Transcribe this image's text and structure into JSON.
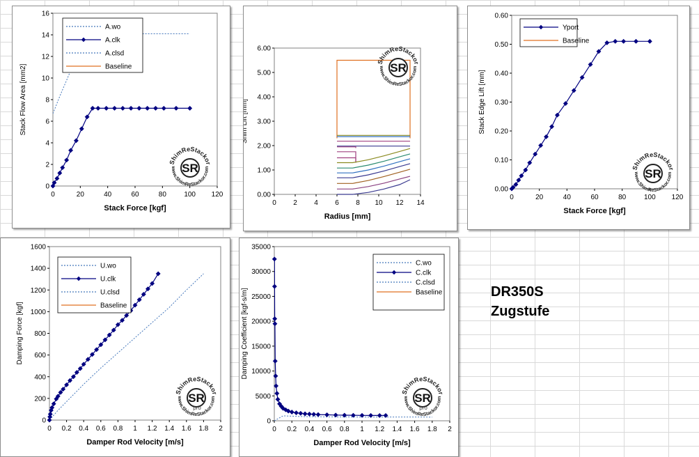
{
  "colors": {
    "series": "#000080",
    "dashed": "#4477bb",
    "baseline": "#e07020",
    "gridline": "#d9d9d9",
    "axis": "#808080"
  },
  "watermark": {
    "brand": "ShimReStackor",
    "url": "www.ShimReStackor.com",
    "logo": "SR",
    "sub": "pro"
  },
  "side_label": {
    "line1": "DR350S",
    "line2": "Zugstufe"
  },
  "chart_data": [
    {
      "id": "flow-area",
      "type": "line",
      "xlabel": "Stack Force [kgf]",
      "ylabel": "Stack Flow Area [mm2]",
      "xlim": [
        0,
        120
      ],
      "ylim": [
        0,
        16
      ],
      "xticks": [
        0,
        20,
        40,
        60,
        80,
        100,
        120
      ],
      "yticks": [
        0,
        2,
        4,
        6,
        8,
        10,
        12,
        14,
        16
      ],
      "ydec": 0,
      "legend": [
        "A.wo",
        "A.clk",
        "A.clsd",
        "Baseline"
      ],
      "series": [
        {
          "name": "A.wo",
          "style": "dashed",
          "x": [
            0,
            5,
            10,
            15,
            20,
            25,
            30,
            33,
            40,
            60,
            80,
            100
          ],
          "y": [
            6.7,
            8.3,
            9.8,
            11.3,
            12.6,
            13.6,
            14.1,
            14.1,
            14.1,
            14.1,
            14.1,
            14.1
          ]
        },
        {
          "name": "A.clk",
          "style": "marker",
          "x": [
            0,
            1,
            3,
            5,
            7,
            10,
            13,
            17,
            21,
            25,
            29,
            33,
            39,
            45,
            51,
            57,
            63,
            69,
            75,
            81,
            90,
            100
          ],
          "y": [
            0,
            0.3,
            0.7,
            1.2,
            1.7,
            2.4,
            3.3,
            4.2,
            5.3,
            6.4,
            7.2,
            7.2,
            7.2,
            7.2,
            7.2,
            7.2,
            7.2,
            7.2,
            7.2,
            7.2,
            7.2,
            7.2
          ]
        }
      ]
    },
    {
      "id": "shim-lift",
      "type": "line",
      "xlabel": "Radius [mm]",
      "ylabel": "Shim Lift [mm]",
      "xlim": [
        0,
        14
      ],
      "ylim": [
        0,
        6
      ],
      "xticks": [
        0,
        2,
        4,
        6,
        8,
        10,
        12,
        14
      ],
      "yticks": [
        0,
        1,
        2,
        3,
        4,
        5,
        6
      ],
      "ydec": 2,
      "series": [
        {
          "name": "box",
          "color": "#e07020",
          "x": [
            6,
            6,
            13,
            13
          ],
          "y": [
            2.3,
            5.5,
            5.5,
            2.3
          ]
        },
        {
          "name": "s1",
          "color": "#8a8a20",
          "x": [
            6,
            13
          ],
          "y": [
            2.42,
            2.42
          ]
        },
        {
          "name": "s2",
          "color": "#3070c0",
          "x": [
            6,
            13
          ],
          "y": [
            2.37,
            2.37
          ]
        },
        {
          "name": "s3",
          "color": "#a04080",
          "x": [
            6,
            13
          ],
          "y": [
            2.18,
            2.18
          ]
        },
        {
          "name": "s4",
          "color": "#3a3a90",
          "x": [
            6,
            13
          ],
          "y": [
            1.98,
            1.98
          ]
        },
        {
          "name": "c1",
          "color": "#a04080",
          "x": [
            6,
            7.8,
            7.8
          ],
          "y": [
            1.95,
            1.95,
            1.9
          ]
        },
        {
          "name": "c2",
          "color": "#a04080",
          "x": [
            6,
            7.8,
            7.8
          ],
          "y": [
            1.75,
            1.75,
            1.3
          ]
        },
        {
          "name": "c3",
          "color": "#a04080",
          "x": [
            6,
            7.8,
            7.8
          ],
          "y": [
            1.5,
            1.5,
            1.3
          ]
        },
        {
          "name": "f1",
          "color": "#8a8a20",
          "x": [
            6,
            7.5,
            9,
            10.5,
            12,
            13
          ],
          "y": [
            1.3,
            1.3,
            1.42,
            1.58,
            1.76,
            1.88
          ]
        },
        {
          "name": "f2",
          "color": "#2a8a70",
          "x": [
            6,
            7.5,
            9,
            10.5,
            12,
            13
          ],
          "y": [
            1.08,
            1.08,
            1.2,
            1.36,
            1.54,
            1.66
          ]
        },
        {
          "name": "f3",
          "color": "#3070c0",
          "x": [
            6,
            7.5,
            9,
            10.5,
            12,
            13
          ],
          "y": [
            0.88,
            0.88,
            1.0,
            1.16,
            1.34,
            1.46
          ]
        },
        {
          "name": "f4",
          "color": "#3a3a90",
          "x": [
            6,
            7.5,
            9,
            10.5,
            12,
            13
          ],
          "y": [
            0.68,
            0.68,
            0.8,
            0.96,
            1.14,
            1.26
          ]
        },
        {
          "name": "f5",
          "color": "#a06020",
          "x": [
            6,
            7.5,
            9,
            10.5,
            12,
            13
          ],
          "y": [
            0.45,
            0.45,
            0.57,
            0.73,
            0.91,
            1.03
          ]
        },
        {
          "name": "f6",
          "color": "#8a4080",
          "x": [
            6,
            7.5,
            9,
            10.5,
            12,
            13
          ],
          "y": [
            0.22,
            0.22,
            0.32,
            0.46,
            0.63,
            0.74
          ]
        },
        {
          "name": "f7",
          "color": "#3a3a90",
          "x": [
            6,
            7.5,
            9,
            10.5,
            12,
            13
          ],
          "y": [
            0,
            0,
            0.08,
            0.22,
            0.4,
            0.6
          ]
        }
      ]
    },
    {
      "id": "edge-lift",
      "type": "line",
      "xlabel": "Stack Force [kgf]",
      "ylabel": "Stack Edge Lift [mm]",
      "xlim": [
        0,
        120
      ],
      "ylim": [
        0,
        0.6
      ],
      "xticks": [
        0,
        20,
        40,
        60,
        80,
        100,
        120
      ],
      "yticks": [
        0,
        0.1,
        0.2,
        0.3,
        0.4,
        0.5,
        0.6
      ],
      "ydec": 2,
      "legend": [
        "Yport",
        "Baseline"
      ],
      "series": [
        {
          "name": "Yport",
          "style": "marker",
          "x": [
            0,
            1,
            3,
            5,
            7,
            10,
            13,
            17,
            21,
            25,
            29,
            33,
            39,
            45,
            51,
            57,
            63,
            69,
            75,
            81,
            90,
            100
          ],
          "y": [
            0,
            0.005,
            0.015,
            0.03,
            0.045,
            0.065,
            0.09,
            0.12,
            0.15,
            0.18,
            0.215,
            0.255,
            0.295,
            0.34,
            0.385,
            0.43,
            0.475,
            0.505,
            0.51,
            0.51,
            0.51,
            0.51
          ]
        }
      ]
    },
    {
      "id": "damping-force",
      "type": "line",
      "xlabel": "Damper Rod Velocity [m/s]",
      "ylabel": "Damping Force [kgf]",
      "xlim": [
        0,
        2
      ],
      "ylim": [
        0,
        1600
      ],
      "xticks": [
        0,
        0.2,
        0.4,
        0.6,
        0.8,
        1,
        1.2,
        1.4,
        1.6,
        1.8,
        2
      ],
      "yticks": [
        0,
        200,
        400,
        600,
        800,
        1000,
        1200,
        1400,
        1600
      ],
      "ydec": 0,
      "legend": [
        "U.wo",
        "U.clk",
        "U.clsd",
        "Baseline"
      ],
      "series": [
        {
          "name": "U.wo",
          "style": "dashed",
          "x": [
            0,
            0.1,
            0.2,
            0.4,
            0.6,
            0.8,
            1.0,
            1.2,
            1.4,
            1.6,
            1.8
          ],
          "y": [
            0,
            90,
            170,
            330,
            480,
            620,
            760,
            900,
            1040,
            1200,
            1350
          ]
        },
        {
          "name": "U.clk",
          "style": "marker",
          "x": [
            0,
            0.005,
            0.01,
            0.02,
            0.03,
            0.05,
            0.08,
            0.1,
            0.13,
            0.16,
            0.2,
            0.24,
            0.28,
            0.32,
            0.36,
            0.4,
            0.45,
            0.5,
            0.55,
            0.6,
            0.65,
            0.7,
            0.75,
            0.8,
            0.85,
            0.9,
            0.95,
            1.0,
            1.05,
            1.1,
            1.15,
            1.2,
            1.27
          ],
          "y": [
            0,
            30,
            55,
            90,
            115,
            150,
            195,
            220,
            255,
            285,
            325,
            365,
            400,
            440,
            475,
            515,
            560,
            605,
            650,
            695,
            740,
            785,
            830,
            880,
            920,
            965,
            1010,
            1060,
            1110,
            1160,
            1210,
            1260,
            1350
          ]
        }
      ]
    },
    {
      "id": "damping-coef",
      "type": "line",
      "xlabel": "Damper Rod Velocity [m/s]",
      "ylabel": "Damping Coefficient [kgf-s/m]",
      "xlim": [
        0,
        2
      ],
      "ylim": [
        0,
        35000
      ],
      "xticks": [
        0,
        0.2,
        0.4,
        0.6,
        0.8,
        1,
        1.2,
        1.4,
        1.6,
        1.8,
        2
      ],
      "yticks": [
        0,
        5000,
        10000,
        15000,
        20000,
        25000,
        30000,
        35000
      ],
      "ydec": 0,
      "legend": [
        "C.wo",
        "C.clk",
        "C.clsd",
        "Baseline"
      ],
      "series": [
        {
          "name": "C.wo",
          "style": "dashed",
          "x": [
            0,
            0.1,
            0.3,
            0.6,
            1.0,
            1.4,
            1.8
          ],
          "y": [
            0,
            1000,
            850,
            780,
            760,
            750,
            740
          ]
        },
        {
          "name": "C.clk",
          "style": "marker",
          "x": [
            0.002,
            0.003,
            0.005,
            0.007,
            0.01,
            0.015,
            0.02,
            0.03,
            0.04,
            0.06,
            0.08,
            0.1,
            0.13,
            0.16,
            0.2,
            0.25,
            0.3,
            0.35,
            0.4,
            0.45,
            0.5,
            0.6,
            0.7,
            0.8,
            0.9,
            1.0,
            1.1,
            1.2,
            1.27
          ],
          "y": [
            32500,
            27000,
            20500,
            19500,
            12000,
            9000,
            7000,
            5500,
            4300,
            3400,
            2900,
            2500,
            2200,
            1950,
            1750,
            1600,
            1500,
            1400,
            1350,
            1300,
            1250,
            1200,
            1150,
            1120,
            1100,
            1080,
            1070,
            1060,
            1060
          ]
        }
      ]
    }
  ]
}
